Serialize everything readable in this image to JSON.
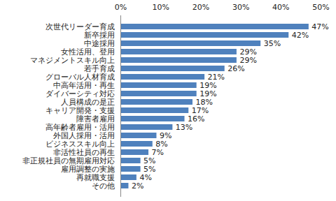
{
  "chart_data": {
    "type": "bar",
    "orientation": "horizontal",
    "categories": [
      "次世代リーダー育成",
      "新卒採用",
      "中途採用",
      "女性活用、登用",
      "マネジメントスキル向上",
      "若手育成",
      "グローバル人材育成",
      "中高年活用・再生",
      "ダイバーシティ対応",
      "人員構成の是正",
      "キャリア開発・支援",
      "障害者雇用",
      "高年齢者雇用・活用",
      "外国人採用・活用",
      "ビジネススキル向上",
      "非活性社員の再生",
      "非正規社員の無期雇用対応",
      "雇用調整の実施",
      "再就職支援",
      "その他"
    ],
    "values": [
      47,
      42,
      35,
      29,
      29,
      26,
      21,
      19,
      19,
      18,
      17,
      16,
      13,
      9,
      8,
      7,
      5,
      5,
      4,
      2
    ],
    "value_labels": [
      "47%",
      "42%",
      "35%",
      "29%",
      "29%",
      "26%",
      "21%",
      "19%",
      "19%",
      "18%",
      "17%",
      "16%",
      "13%",
      "9%",
      "8%",
      "7%",
      "5%",
      "5%",
      "4%",
      "2%"
    ],
    "color": "#4f81bd",
    "xlim": [
      0,
      50
    ],
    "xticks": [
      {
        "value": 0,
        "label": "0%"
      },
      {
        "value": 10,
        "label": "10%"
      },
      {
        "value": 20,
        "label": "20%"
      },
      {
        "value": 30,
        "label": "30%"
      },
      {
        "value": 40,
        "label": "40%"
      },
      {
        "value": 50,
        "label": "50%"
      }
    ],
    "grid": false,
    "data_labels": true
  }
}
